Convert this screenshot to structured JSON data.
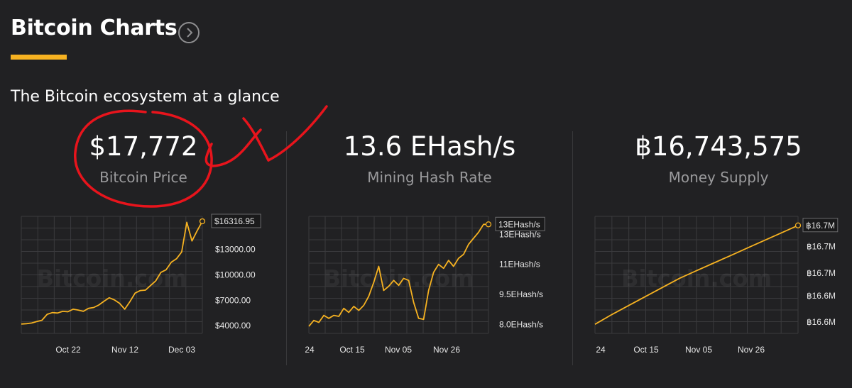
{
  "header": {
    "title": "Bitcoin Charts",
    "subtitle": "The Bitcoin ecosystem at a glance"
  },
  "stats": [
    {
      "value": "$17,772",
      "label": "Bitcoin Price"
    },
    {
      "value": "13.6 EHash/s",
      "label": "Mining Hash Rate"
    },
    {
      "value": "฿16,743,575",
      "label": "Money Supply"
    }
  ],
  "colors": {
    "accent": "#f6b221",
    "series": "#f6b221",
    "annotation": "#e8141c",
    "background": "#212123"
  },
  "watermark": "Bitcoin.com",
  "icons": {
    "title_link": "chevron-right-circle-icon",
    "handwritten_mark": "red-circle-and-x-annotation"
  },
  "chart_data": [
    {
      "type": "line",
      "title": "",
      "series": [
        {
          "values": [
            4200,
            4250,
            4320,
            4500,
            4650,
            5350,
            5550,
            5500,
            5700,
            5650,
            5950,
            5850,
            5700,
            6050,
            6150,
            6450,
            6900,
            7300,
            7050,
            6650,
            5950,
            6850,
            7850,
            8150,
            8200,
            8750,
            9300,
            10300,
            10600,
            11500,
            11900,
            12700,
            16200,
            14000,
            15200,
            16316.95
          ]
        }
      ],
      "yticks": [
        4000,
        7000,
        10000,
        13000
      ],
      "ytick_labels": [
        "$4000.00",
        "$7000.00",
        "$10000.00",
        "$13000.00"
      ],
      "ylim": [
        3100,
        16900
      ],
      "last_value_label": "$16316.95",
      "xticks": [
        "Oct 22",
        "Nov 12",
        "Dec 03"
      ],
      "watermark": true
    },
    {
      "type": "line",
      "title": "",
      "series": [
        {
          "values": [
            7.9,
            8.2,
            8.1,
            8.45,
            8.3,
            8.45,
            8.4,
            8.8,
            8.6,
            8.9,
            8.7,
            8.95,
            9.4,
            10.1,
            10.9,
            9.7,
            9.9,
            10.2,
            9.95,
            10.3,
            10.2,
            9.1,
            8.3,
            8.25,
            9.7,
            10.6,
            11.0,
            10.8,
            11.2,
            10.9,
            11.3,
            11.5,
            12.0,
            12.3,
            12.6,
            13.0,
            13.0
          ]
        }
      ],
      "yticks": [
        8.0,
        9.5,
        11.0,
        12.5
      ],
      "ytick_labels": [
        "8.0EHash/s",
        "9.5EHash/s",
        "11EHash/s",
        "13EHash/s"
      ],
      "ylim": [
        7.55,
        13.4
      ],
      "last_value_label": "13EHash/s",
      "xticks": [
        "24",
        "Oct 15",
        "Nov 05",
        "Nov 26"
      ],
      "watermark": true
    },
    {
      "type": "line",
      "title": "",
      "series": [
        {
          "values": [
            16.612,
            16.625,
            16.637,
            16.649,
            16.661,
            16.673,
            16.683,
            16.693,
            16.703,
            16.713,
            16.723,
            16.733,
            16.743
          ]
        }
      ],
      "yticks": [
        16.615,
        16.65,
        16.68,
        16.715
      ],
      "ytick_labels": [
        "฿16.6M",
        "฿16.6M",
        "฿16.7M",
        "฿16.7M"
      ],
      "ylim": [
        16.6,
        16.755
      ],
      "last_value_label": "฿16.7M",
      "xticks": [
        "24",
        "Oct 15",
        "Nov 05",
        "Nov 26"
      ],
      "watermark": true
    }
  ]
}
